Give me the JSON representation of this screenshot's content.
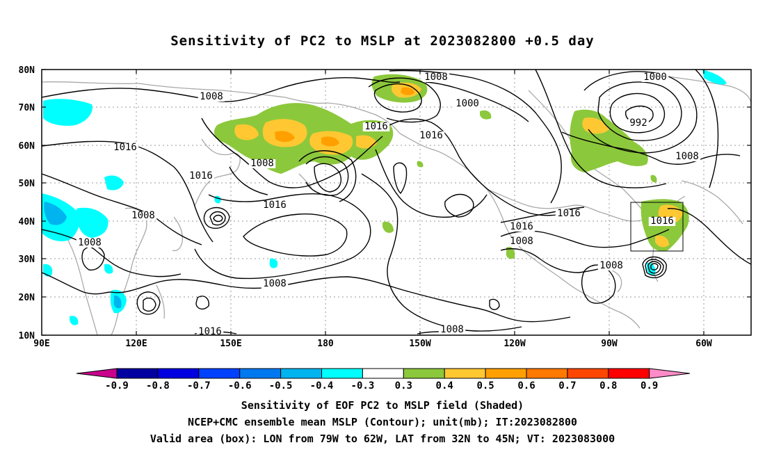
{
  "title": "Sensitivity of PC2 to MSLP at 2023082800 +0.5 day",
  "map": {
    "lat_labels": [
      "80N",
      "70N",
      "60N",
      "50N",
      "40N",
      "30N",
      "20N",
      "10N"
    ],
    "lon_labels": [
      "90E",
      "120E",
      "150E",
      "180",
      "150W",
      "120W",
      "90W",
      "60W"
    ],
    "valid_box": {
      "lon_from": "79W",
      "lon_to": "62W",
      "lat_from": "32N",
      "lat_to": "45N"
    }
  },
  "contour_labels": [
    "1008",
    "1016",
    "1016",
    "1008",
    "1016",
    "1008",
    "1008",
    "1016",
    "1008",
    "1016",
    "1008",
    "1000",
    "1016",
    "1016",
    "1008",
    "1016",
    "1016",
    "1008",
    "1000",
    "992",
    "1008",
    "1016",
    "1008",
    "1008"
  ],
  "colorbar": {
    "labels": [
      "-0.9",
      "-0.8",
      "-0.7",
      "-0.6",
      "-0.5",
      "-0.4",
      "-0.3",
      "0.3",
      "0.4",
      "0.5",
      "0.6",
      "0.7",
      "0.8",
      "0.9"
    ],
    "colors": [
      "#c8008c",
      "#0000a0",
      "#0000e0",
      "#0040ff",
      "#0078f0",
      "#00b4f0",
      "#00ffff",
      "#ffffff",
      "#8cc83c",
      "#ffc832",
      "#ffa000",
      "#ff7800",
      "#ff4600",
      "#ff0000",
      "#ff8cc8"
    ]
  },
  "captions": {
    "line1": "Sensitivity of EOF PC2 to MSLP field (Shaded)",
    "line2": "NCEP+CMC ensemble mean MSLP (Contour); unit(mb); IT:2023082800",
    "line3": "Valid area (box): LON from 79W to 62W, LAT from 32N to 45N; VT: 2023083000"
  }
}
